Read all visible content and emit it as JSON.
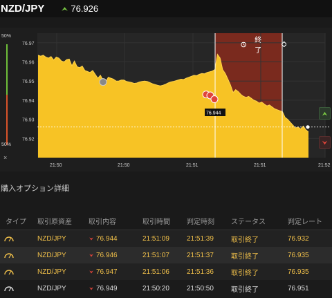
{
  "header": {
    "pair": "NZD/JPY",
    "price": "76.926"
  },
  "gauge": {
    "top": "50%",
    "bottom": "50%",
    "close": "×"
  },
  "chart": {
    "end_label": "終了",
    "current_label": "76.944"
  },
  "chart_data": {
    "type": "area",
    "ylim": [
      76.91,
      76.975
    ],
    "y_ticks": [
      "76.97",
      "76.96",
      "76.95",
      "76.94",
      "76.93",
      "76.92"
    ],
    "x_ticks": [
      "21:50",
      "21:50",
      "21:51",
      "21:51",
      "21:52"
    ],
    "series": [
      {
        "values": [
          76.9635,
          76.963,
          76.9635,
          76.9625,
          76.962,
          76.9628,
          76.961,
          76.9625,
          76.962,
          76.9605,
          76.96,
          76.9612,
          76.9615,
          76.958,
          76.9605,
          76.9575,
          76.957,
          76.9578,
          76.9555,
          76.955,
          76.9545,
          76.9555,
          76.9535,
          76.9515,
          76.953,
          76.9505,
          76.9495,
          76.952,
          76.9515,
          76.951,
          76.95,
          76.95,
          76.9505,
          76.9505,
          76.9498,
          76.9495,
          76.9492,
          76.9488,
          76.949,
          76.9495,
          76.9498,
          76.95,
          76.9498,
          76.9492,
          76.9486,
          76.9482,
          76.9478,
          76.9475,
          76.9478,
          76.9483,
          76.949,
          76.9495,
          76.9498,
          76.9502,
          76.9506,
          76.951,
          76.9508,
          76.9515,
          76.952,
          76.9525,
          76.953,
          76.9528,
          76.9535,
          76.954,
          76.9538,
          76.9545,
          76.9548,
          76.9552,
          76.956,
          76.964,
          76.962,
          76.956,
          76.954,
          76.951,
          76.948,
          76.944,
          76.9455,
          76.9445,
          76.943,
          76.942,
          76.9415,
          76.942,
          76.941,
          76.94,
          76.9395,
          76.9385,
          76.939,
          76.938,
          76.937,
          76.9375,
          76.9365,
          76.9355,
          76.935,
          76.9345,
          76.934,
          76.931,
          76.93,
          76.9285,
          76.927,
          76.9255,
          76.926,
          76.925,
          76.9265,
          76.9245,
          76.9235
        ]
      }
    ],
    "grid": true
  },
  "section_title": "購入オプション詳細",
  "table": {
    "headers": [
      "タイプ",
      "取引原資産",
      "取引内容",
      "取引時間",
      "判定時刻",
      "ステータス",
      "判定レート"
    ],
    "rows": [
      {
        "asset": "NZD/JPY",
        "rate": "76.944",
        "time": "21:51:09",
        "judge": "21:51:39",
        "status": "取引終了",
        "result": "76.932"
      },
      {
        "asset": "NZD/JPY",
        "rate": "76.946",
        "time": "21:51:07",
        "judge": "21:51:37",
        "status": "取引終了",
        "result": "76.935"
      },
      {
        "asset": "NZD/JPY",
        "rate": "76.947",
        "time": "21:51:06",
        "judge": "21:51:36",
        "status": "取引終了",
        "result": "76.935"
      },
      {
        "asset": "NZD/JPY",
        "rate": "76.949",
        "time": "21:50:20",
        "judge": "21:50:50",
        "status": "取引終了",
        "result": "76.951"
      }
    ]
  }
}
